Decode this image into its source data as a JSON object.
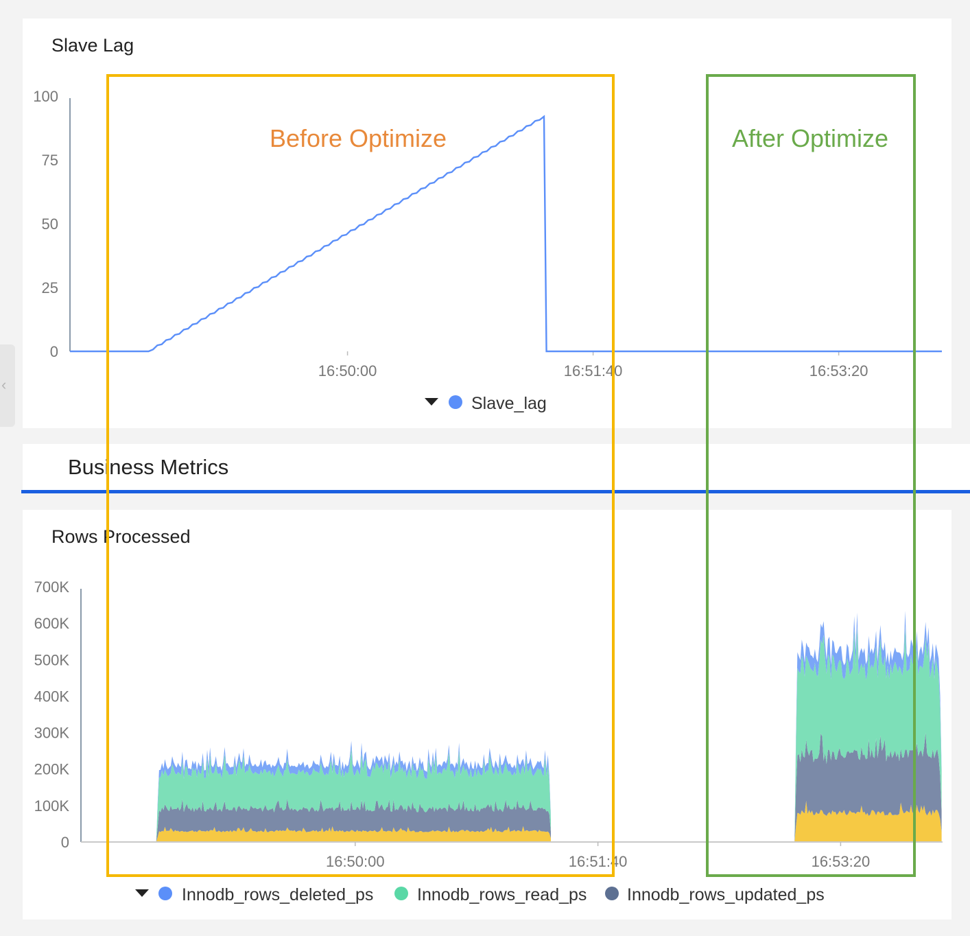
{
  "panels": {
    "lag_title": "Slave Lag",
    "section_title": "Business Metrics",
    "rows_title": "Rows Processed"
  },
  "annotations": [
    {
      "label": "Before Optimize",
      "color": "#f5b800",
      "text_color": "#e8893a"
    },
    {
      "label": "After Optimize",
      "color": "#6aaa4b",
      "text_color": "#6aaa4b"
    }
  ],
  "chart_data": [
    {
      "type": "line",
      "title": "Slave Lag",
      "x_tick_labels": [
        "16:50:00",
        "16:51:40",
        "16:53:20"
      ],
      "y_ticks": [
        0,
        25,
        50,
        75,
        100
      ],
      "ylim": [
        0,
        100
      ],
      "xlim": [
        "16:48:07",
        "16:54:02"
      ],
      "series": [
        {
          "name": "Slave_lag",
          "color": "#5b8ff9",
          "x": [
            "16:48:07",
            "16:48:39",
            "16:51:20",
            "16:51:21",
            "16:54:02"
          ],
          "y": [
            0,
            0,
            92,
            0,
            0
          ]
        }
      ],
      "legend": {
        "position": "bottom-center",
        "entries": [
          "Slave_lag"
        ]
      },
      "grid": false
    },
    {
      "type": "area",
      "stacked": true,
      "title": "Rows Processed",
      "x_tick_labels": [
        "16:50:00",
        "16:51:40",
        "16:53:20"
      ],
      "y_tick_labels": [
        "0",
        "100K",
        "200K",
        "300K",
        "400K",
        "500K",
        "600K",
        "700K"
      ],
      "ylim": [
        0,
        700000
      ],
      "xlim": [
        "16:48:07",
        "16:54:02"
      ],
      "segments": [
        {
          "start": "16:48:38",
          "end": "16:51:21"
        },
        {
          "start": "16:53:01",
          "end": "16:54:02"
        }
      ],
      "series": [
        {
          "name": "",
          "color": "#f6c944",
          "levels": [
            30000,
            80000
          ]
        },
        {
          "name": "Innodb_rows_updated_ps",
          "color": "#7b8aa8",
          "levels": [
            60000,
            160000
          ]
        },
        {
          "name": "Innodb_rows_read_ps",
          "color": "#7ddfb8",
          "levels": [
            100000,
            240000
          ]
        },
        {
          "name": "Innodb_rows_deleted_ps",
          "color": "#7ba6f7",
          "levels": [
            20000,
            40000
          ]
        }
      ],
      "legend": {
        "position": "bottom-center",
        "entries": [
          "Innodb_rows_deleted_ps",
          "Innodb_rows_read_ps",
          "Innodb_rows_updated_ps"
        ]
      },
      "grid": false
    }
  ]
}
